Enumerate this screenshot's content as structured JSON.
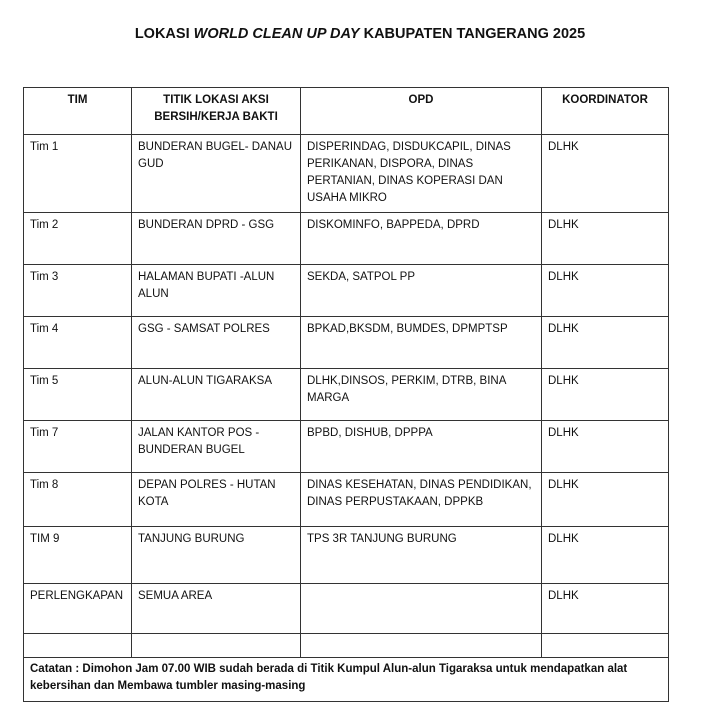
{
  "title": {
    "prefix": "LOKASI ",
    "italic": "WORLD CLEAN UP DAY",
    "suffix": " KABUPATEN TANGERANG 2025"
  },
  "table": {
    "headers": [
      "TIM",
      "TITIK LOKASI AKSI BERSIH/KERJA BAKTI",
      "OPD",
      "KOORDINATOR"
    ],
    "rows": [
      [
        "Tim 1",
        "BUNDERAN BUGEL- DANAU GUD",
        "DISPERINDAG, DISDUKCAPIL, DINAS PERIKANAN, DISPORA, DINAS PERTANIAN, DINAS KOPERASI DAN USAHA MIKRO",
        "DLHK"
      ],
      [
        "Tim 2",
        "BUNDERAN DPRD - GSG",
        "DISKOMINFO, BAPPEDA, DPRD",
        "DLHK"
      ],
      [
        "Tim 3",
        "HALAMAN BUPATI -ALUN ALUN",
        "SEKDA, SATPOL PP",
        "DLHK"
      ],
      [
        "Tim 4",
        "GSG - SAMSAT POLRES",
        "BPKAD,BKSDM, BUMDES, DPMPTSP",
        "DLHK"
      ],
      [
        "Tim 5",
        "ALUN-ALUN TIGARAKSA",
        "DLHK,DINSOS, PERKIM, DTRB, BINA MARGA",
        "DLHK"
      ],
      [
        "Tim 7",
        "JALAN KANTOR POS - BUNDERAN BUGEL",
        "BPBD, DISHUB, DPPPA",
        "DLHK"
      ],
      [
        "Tim 8",
        "DEPAN POLRES - HUTAN KOTA",
        "DINAS KESEHATAN, DINAS PENDIDIKAN, DINAS PERPUSTAKAAN,  DPPKB",
        "DLHK"
      ],
      [
        "TIM 9",
        "TANJUNG BURUNG",
        "TPS 3R TANJUNG BURUNG",
        "DLHK"
      ],
      [
        "PERLENGKAPAN",
        "SEMUA AREA",
        "",
        "DLHK"
      ],
      [
        "",
        "",
        "",
        ""
      ]
    ],
    "note": "Catatan : Dimohon Jam 07.00 WIB sudah berada di Titik Kumpul Alun-alun Tigaraksa untuk mendapatkan alat kebersihan dan Membawa tumbler masing-masing"
  }
}
